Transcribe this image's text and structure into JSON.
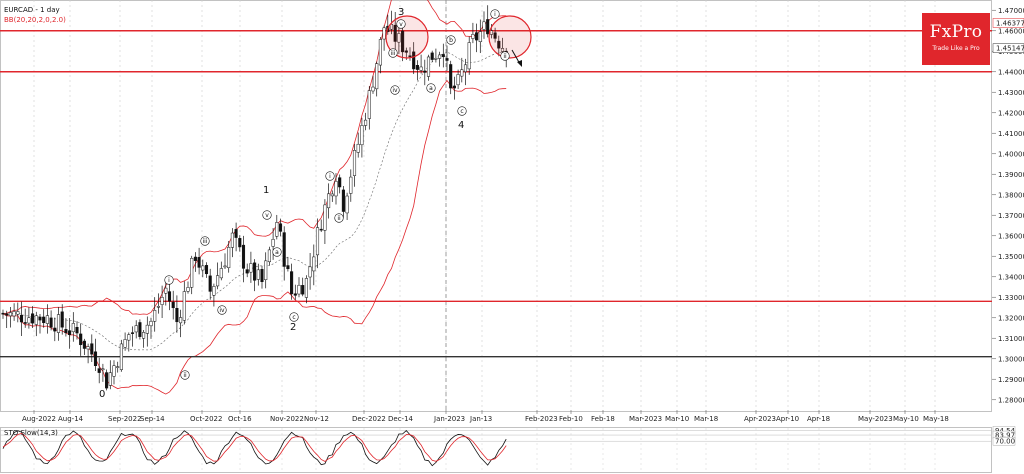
{
  "chart_data": {
    "type": "candlestick",
    "symbol": "EURCAD",
    "title": "EURCAD - 1 day",
    "indicator_label": "BB(20,20,2,0,2.0)",
    "oscillator_label": "STO Slow(14,3)",
    "price_labels": [
      "1.46377",
      "1.45147"
    ],
    "ylim": [
      1.275,
      1.475
    ],
    "y_ticks": [
      "1.47000",
      "1.46000",
      "1.45000",
      "1.44000",
      "1.43000",
      "1.42000",
      "1.41000",
      "1.40000",
      "1.39000",
      "1.38000",
      "1.37000",
      "1.36000",
      "1.35000",
      "1.34000",
      "1.33000",
      "1.32000",
      "1.31000",
      "1.30000",
      "1.29000",
      "1.28000"
    ],
    "x_ticks": [
      "Aug-2022",
      "Aug-14",
      "Sep-2022",
      "Sep-14",
      "Oct-2022",
      "Oct-16",
      "Nov-2022",
      "Nov-12",
      "Dec-2022",
      "Dec-14",
      "Jan-2023",
      "Jan-13",
      "Feb-2023",
      "Feb-10",
      "Feb-18",
      "Mar-2023",
      "Mar-10",
      "Mar-18",
      "Apr-2023",
      "Apr-10",
      "Apr-18",
      "May-2023",
      "May-10",
      "May-18"
    ],
    "horizontal_levels": [
      {
        "value": 1.46,
        "color": "#e0262c"
      },
      {
        "value": 1.44,
        "color": "#e0262c"
      },
      {
        "value": 1.328,
        "color": "#e0262c"
      },
      {
        "value": 1.301,
        "color": "#333333"
      }
    ],
    "stoch_levels": [
      "94.54",
      "83.97",
      "70.00"
    ],
    "wave_labels": [
      "0",
      "1",
      "2",
      "3",
      "4"
    ],
    "sub_wave_labels": [
      "i",
      "ii",
      "iii",
      "iv",
      "v",
      "a",
      "b",
      "c"
    ]
  },
  "logo": {
    "brand": "FxPro",
    "tagline": "Trade Like a Pro"
  }
}
